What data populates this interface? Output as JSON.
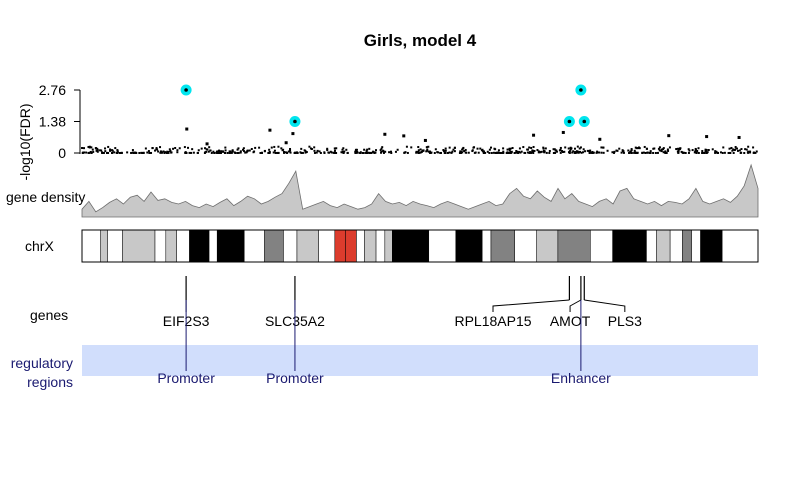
{
  "chart_data": {
    "type": "scatter",
    "title": "Girls, model 4",
    "ylabel": "-log10(FDR)",
    "yticks": [
      {
        "value": 0,
        "label": "0"
      },
      {
        "value": 1.38,
        "label": "1.38"
      },
      {
        "value": 2.76,
        "label": "2.76"
      }
    ],
    "ylim": [
      0,
      2.9
    ],
    "xlim": [
      0,
      1
    ],
    "gap": [
      0.396,
      0.404
    ],
    "highlight_color": "#00e5ee",
    "highlighted_points": [
      {
        "x": 0.154,
        "y": 2.76
      },
      {
        "x": 0.315,
        "y": 1.38
      },
      {
        "x": 0.721,
        "y": 1.38
      },
      {
        "x": 0.738,
        "y": 2.76
      },
      {
        "x": 0.743,
        "y": 1.38
      }
    ],
    "outlier_points": [
      {
        "x": 0.155,
        "y": 1.05
      },
      {
        "x": 0.278,
        "y": 1.0
      },
      {
        "x": 0.312,
        "y": 0.85
      },
      {
        "x": 0.448,
        "y": 0.82
      },
      {
        "x": 0.476,
        "y": 0.75
      },
      {
        "x": 0.668,
        "y": 0.78
      },
      {
        "x": 0.712,
        "y": 0.9
      },
      {
        "x": 0.766,
        "y": 0.6
      },
      {
        "x": 0.868,
        "y": 0.76
      },
      {
        "x": 0.924,
        "y": 0.72
      },
      {
        "x": 0.972,
        "y": 0.68
      },
      {
        "x": 0.508,
        "y": 0.55
      },
      {
        "x": 0.302,
        "y": 0.45
      },
      {
        "x": 0.185,
        "y": 0.4
      }
    ],
    "density_label": "gene density",
    "gene_density": [
      0.15,
      0.3,
      0.1,
      0.18,
      0.28,
      0.35,
      0.25,
      0.38,
      0.42,
      0.3,
      0.48,
      0.32,
      0.35,
      0.28,
      0.25,
      0.3,
      0.22,
      0.18,
      0.25,
      0.2,
      0.28,
      0.35,
      0.22,
      0.3,
      0.4,
      0.35,
      0.25,
      0.3,
      0.38,
      0.45,
      0.65,
      0.88,
      0.15,
      0.2,
      0.25,
      0.3,
      0.22,
      0.18,
      0.25,
      0.2,
      0.15,
      0.18,
      0.25,
      0.45,
      0.3,
      0.25,
      0.28,
      0.22,
      0.3,
      0.25,
      0.22,
      0.18,
      0.25,
      0.3,
      0.25,
      0.2,
      0.15,
      0.2,
      0.25,
      0.3,
      0.22,
      0.25,
      0.45,
      0.55,
      0.4,
      0.35,
      0.5,
      0.38,
      0.3,
      0.55,
      0.35,
      0.45,
      0.3,
      0.25,
      0.2,
      0.3,
      0.35,
      0.25,
      0.5,
      0.55,
      0.35,
      0.3,
      0.25,
      0.3,
      0.22,
      0.3,
      0.28,
      0.25,
      0.35,
      0.55,
      0.3,
      0.25,
      0.3,
      0.35,
      0.28,
      0.4,
      0.6,
      1.0,
      0.55
    ],
    "chromosome": {
      "label": "chrX",
      "bands": [
        {
          "start": 0.0,
          "end": 0.027,
          "color": "#ffffff"
        },
        {
          "start": 0.027,
          "end": 0.038,
          "color": "#c8c8c8"
        },
        {
          "start": 0.038,
          "end": 0.06,
          "color": "#ffffff"
        },
        {
          "start": 0.06,
          "end": 0.108,
          "color": "#c8c8c8"
        },
        {
          "start": 0.108,
          "end": 0.124,
          "color": "#ffffff"
        },
        {
          "start": 0.124,
          "end": 0.14,
          "color": "#c8c8c8"
        },
        {
          "start": 0.14,
          "end": 0.159,
          "color": "#ffffff"
        },
        {
          "start": 0.159,
          "end": 0.188,
          "color": "#000000"
        },
        {
          "start": 0.188,
          "end": 0.2,
          "color": "#ffffff"
        },
        {
          "start": 0.2,
          "end": 0.24,
          "color": "#000000"
        },
        {
          "start": 0.24,
          "end": 0.27,
          "color": "#ffffff"
        },
        {
          "start": 0.27,
          "end": 0.298,
          "color": "#828282"
        },
        {
          "start": 0.298,
          "end": 0.318,
          "color": "#ffffff"
        },
        {
          "start": 0.318,
          "end": 0.35,
          "color": "#c8c8c8"
        },
        {
          "start": 0.35,
          "end": 0.374,
          "color": "#ffffff"
        },
        {
          "start": 0.374,
          "end": 0.39,
          "color": "#dc3c2d"
        },
        {
          "start": 0.39,
          "end": 0.406,
          "color": "#dc3c2d"
        },
        {
          "start": 0.406,
          "end": 0.418,
          "color": "#ffffff"
        },
        {
          "start": 0.418,
          "end": 0.435,
          "color": "#c8c8c8"
        },
        {
          "start": 0.435,
          "end": 0.448,
          "color": "#ffffff"
        },
        {
          "start": 0.448,
          "end": 0.459,
          "color": "#c8c8c8"
        },
        {
          "start": 0.459,
          "end": 0.513,
          "color": "#000000"
        },
        {
          "start": 0.513,
          "end": 0.553,
          "color": "#ffffff"
        },
        {
          "start": 0.553,
          "end": 0.592,
          "color": "#000000"
        },
        {
          "start": 0.592,
          "end": 0.605,
          "color": "#ffffff"
        },
        {
          "start": 0.605,
          "end": 0.64,
          "color": "#828282"
        },
        {
          "start": 0.64,
          "end": 0.672,
          "color": "#ffffff"
        },
        {
          "start": 0.672,
          "end": 0.704,
          "color": "#c8c8c8"
        },
        {
          "start": 0.704,
          "end": 0.752,
          "color": "#828282"
        },
        {
          "start": 0.752,
          "end": 0.785,
          "color": "#ffffff"
        },
        {
          "start": 0.785,
          "end": 0.835,
          "color": "#000000"
        },
        {
          "start": 0.835,
          "end": 0.85,
          "color": "#ffffff"
        },
        {
          "start": 0.85,
          "end": 0.87,
          "color": "#c8c8c8"
        },
        {
          "start": 0.87,
          "end": 0.888,
          "color": "#ffffff"
        },
        {
          "start": 0.888,
          "end": 0.902,
          "color": "#828282"
        },
        {
          "start": 0.902,
          "end": 0.915,
          "color": "#ffffff"
        },
        {
          "start": 0.915,
          "end": 0.947,
          "color": "#000000"
        },
        {
          "start": 0.947,
          "end": 1.0,
          "color": "#ffffff"
        }
      ]
    },
    "genes_label": "genes",
    "genes": [
      {
        "name": "EIF2S3",
        "pos": 0.154,
        "label_pos": 0.154
      },
      {
        "name": "SLC35A2",
        "pos": 0.315,
        "label_pos": 0.315
      },
      {
        "name": "RPL18AP15",
        "pos": 0.721,
        "label_pos": 0.608
      },
      {
        "name": "AMOT",
        "pos": 0.738,
        "label_pos": 0.722
      },
      {
        "name": "PLS3",
        "pos": 0.743,
        "label_pos": 0.803
      }
    ],
    "regulatory_label": [
      "regulatory",
      "regions"
    ],
    "regulatory_color": "#d1defc",
    "regulatory_text_color": "#191970",
    "regulatory_regions": [
      {
        "name": "Promoter",
        "pos": 0.154
      },
      {
        "name": "Promoter",
        "pos": 0.315
      },
      {
        "name": "Enhancer",
        "pos": 0.738
      }
    ]
  }
}
